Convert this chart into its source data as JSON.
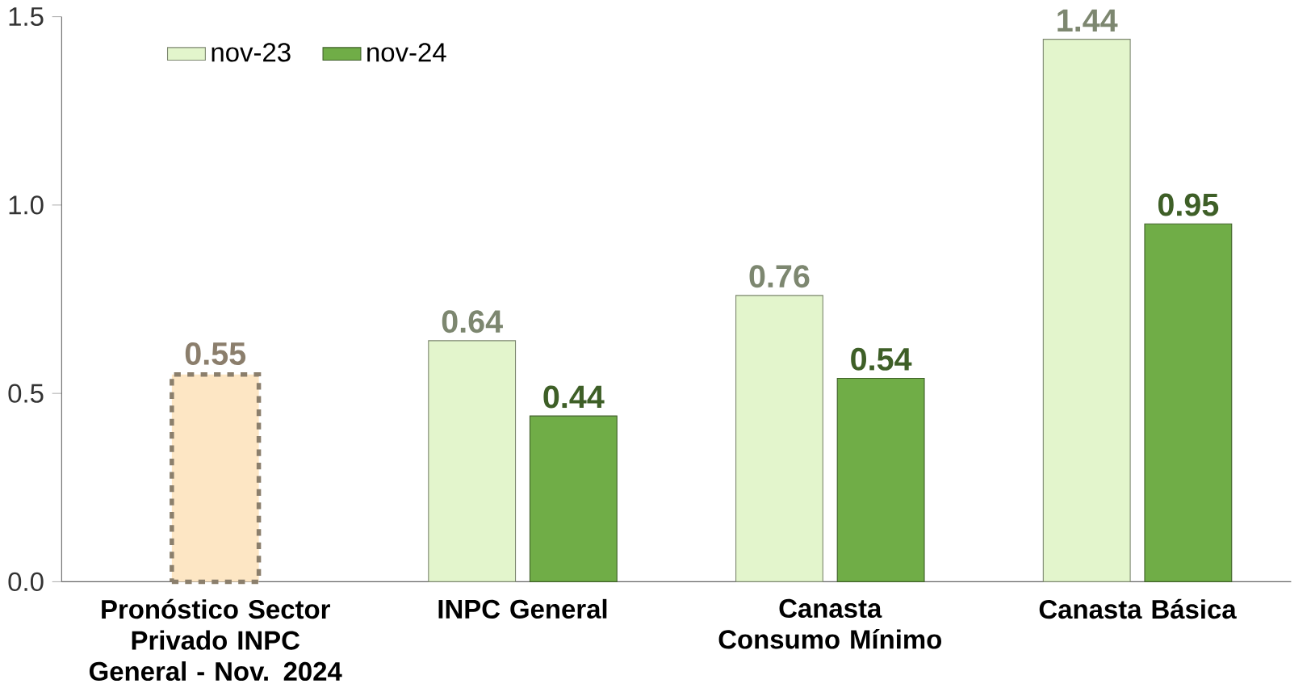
{
  "chart_data": {
    "type": "bar",
    "categories": [
      "Pronóstico Sector Privado INPC General - Nov. 2024",
      "INPC General",
      "Canasta Consumo Mínimo",
      "Canasta Básica"
    ],
    "series": [
      {
        "color": "#fde6c4",
        "values": [
          0.55,
          null,
          null,
          null
        ],
        "line_style": "dashed"
      },
      {
        "name": "nov-23",
        "color": "#e3f5cc",
        "values": [
          null,
          0.64,
          0.76,
          1.44
        ]
      },
      {
        "name": "nov-24",
        "color": "#70ad47",
        "values": [
          null,
          0.44,
          0.54,
          0.95
        ]
      }
    ],
    "ylim": [
      0,
      1.5
    ],
    "yticks": [
      {
        "value": 0,
        "label": "0.0"
      },
      {
        "value": 0.5,
        "label": "0.5"
      },
      {
        "value": 1.0,
        "label": "1.0"
      },
      {
        "value": 1.5,
        "label": "1.5"
      }
    ],
    "data_labels": true,
    "legend": "top left",
    "grid": false
  }
}
